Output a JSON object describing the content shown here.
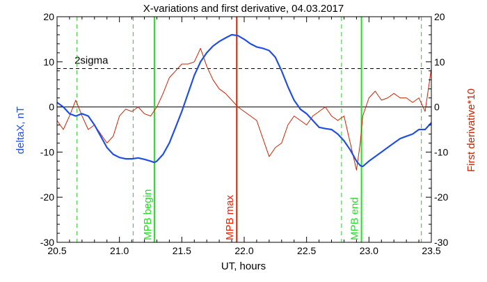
{
  "chart_data": {
    "type": "line",
    "title": "X-variations and first derivative, 04.03.2017",
    "xlabel": "UT, hours",
    "ylabel_left": "deltaX, nT",
    "ylabel_right": "First derivative*10",
    "xlim": [
      20.5,
      23.5
    ],
    "ylim": [
      -30,
      20
    ],
    "x_ticks": [
      "20.5",
      "21.0",
      "21.5",
      "22.0",
      "22.5",
      "23.0",
      "23.5"
    ],
    "x_tick_values": [
      20.5,
      21.0,
      21.5,
      22.0,
      22.5,
      23.0,
      23.5
    ],
    "y_ticks": [
      "20",
      "10",
      "0",
      "-10",
      "-20",
      "-30"
    ],
    "y_tick_values": [
      20,
      10,
      0,
      -10,
      -20,
      -30
    ],
    "colors": {
      "deltaX": "#1f4fe0",
      "derivative": "#cc2200",
      "mpb_begin_end": "#22dd22",
      "mpb_max": "#ee2200",
      "dashed_green": "#22cc22",
      "axis": "#000000"
    },
    "series": [
      {
        "values_role": "deltaX",
        "x": [
          20.5,
          20.55,
          20.6,
          20.65,
          20.7,
          20.75,
          20.8,
          20.85,
          20.9,
          20.95,
          21.0,
          21.05,
          21.1,
          21.15,
          21.2,
          21.25,
          21.28,
          21.3,
          21.35,
          21.4,
          21.45,
          21.5,
          21.55,
          21.6,
          21.65,
          21.7,
          21.75,
          21.8,
          21.85,
          21.9,
          21.95,
          22.0,
          22.05,
          22.1,
          22.15,
          22.2,
          22.25,
          22.3,
          22.35,
          22.4,
          22.45,
          22.5,
          22.55,
          22.6,
          22.65,
          22.7,
          22.75,
          22.8,
          22.85,
          22.9,
          22.93,
          22.95,
          23.0,
          23.05,
          23.1,
          23.15,
          23.2,
          23.25,
          23.3,
          23.35,
          23.4,
          23.45,
          23.5
        ],
        "values": [
          1.0,
          0.0,
          -1.5,
          -2.0,
          -1.5,
          -2.0,
          -4.0,
          -6.5,
          -9.0,
          -10.5,
          -11.2,
          -11.5,
          -11.5,
          -11.3,
          -11.6,
          -12.0,
          -12.3,
          -12.0,
          -10.5,
          -8.0,
          -4.5,
          -1.0,
          3.0,
          7.0,
          10.0,
          12.0,
          13.5,
          14.5,
          15.3,
          16.0,
          15.8,
          15.0,
          14.0,
          13.3,
          13.0,
          12.5,
          11.0,
          8.0,
          4.5,
          1.5,
          -0.5,
          -1.5,
          -3.0,
          -4.5,
          -4.8,
          -5.0,
          -6.0,
          -7.5,
          -9.5,
          -12.0,
          -13.0,
          -13.2,
          -12.0,
          -11.0,
          -10.0,
          -9.0,
          -8.0,
          -7.0,
          -6.5,
          -6.0,
          -5.0,
          -5.0,
          -3.5
        ]
      },
      {
        "values_role": "derivative",
        "x": [
          20.5,
          20.55,
          20.6,
          20.65,
          20.7,
          20.75,
          20.8,
          20.85,
          20.9,
          20.95,
          21.0,
          21.05,
          21.1,
          21.15,
          21.2,
          21.25,
          21.3,
          21.35,
          21.4,
          21.45,
          21.5,
          21.55,
          21.6,
          21.65,
          21.7,
          21.75,
          21.8,
          21.85,
          21.9,
          21.95,
          22.0,
          22.05,
          22.1,
          22.15,
          22.2,
          22.25,
          22.3,
          22.35,
          22.4,
          22.45,
          22.5,
          22.55,
          22.6,
          22.65,
          22.7,
          22.75,
          22.8,
          22.85,
          22.9,
          22.93,
          22.95,
          23.0,
          23.05,
          23.1,
          23.15,
          23.2,
          23.25,
          23.3,
          23.35,
          23.4,
          23.45,
          23.5
        ],
        "values": [
          -3.0,
          -5.0,
          -2.0,
          1.5,
          -2.0,
          -5.0,
          -4.0,
          -6.0,
          -8.0,
          -6.5,
          -2.0,
          -0.5,
          -1.0,
          0.0,
          -1.5,
          -2.0,
          0.0,
          3.0,
          6.5,
          8.0,
          9.5,
          9.5,
          10.0,
          13.0,
          9.0,
          6.0,
          4.0,
          3.0,
          1.5,
          0.0,
          -1.0,
          -2.0,
          -3.0,
          -7.0,
          -11.0,
          -9.0,
          -8.0,
          -4.0,
          -2.0,
          -3.0,
          -4.0,
          -2.0,
          -1.0,
          0.0,
          -2.0,
          -3.0,
          -2.0,
          -8.0,
          -14.0,
          -8.0,
          -2.0,
          2.0,
          3.5,
          1.5,
          2.0,
          3.0,
          2.0,
          2.0,
          1.0,
          2.0,
          -1.0,
          8.5
        ]
      }
    ],
    "threshold": {
      "label": "2sigma",
      "value": 8.5
    },
    "dashed_verticals": [
      20.66,
      21.11,
      22.78,
      23.42
    ],
    "solid_verticals": [
      {
        "x": 21.28,
        "label": "MPB begin",
        "role": "mpb_begin_end"
      },
      {
        "x": 21.94,
        "label": "MPB max",
        "role": "mpb_max"
      },
      {
        "x": 22.94,
        "label": "MPB end",
        "role": "mpb_begin_end"
      }
    ]
  }
}
